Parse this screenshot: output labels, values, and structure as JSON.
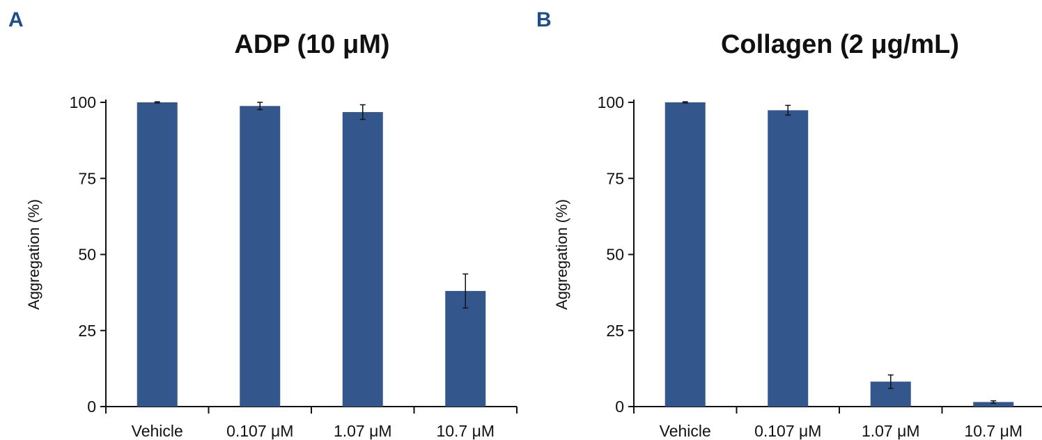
{
  "colors": {
    "bar": "#33578c",
    "axis": "#111111",
    "panel_letter": "#1f4e8c"
  },
  "chart_data": [
    {
      "panel": "A",
      "type": "bar",
      "title": "ADP (10 μM)",
      "xlabel": "",
      "ylabel": "Aggregation (%)",
      "ylim": [
        0,
        100
      ],
      "yticks": [
        "0",
        "25",
        "50",
        "75",
        "100"
      ],
      "categories": [
        "Vehicle",
        "0.107 μM",
        "1.07 μM",
        "10.7 μM"
      ],
      "values": [
        100,
        98.8,
        96.8,
        38.0
      ],
      "errors": [
        0.2,
        1.2,
        2.4,
        5.6
      ],
      "grid": false,
      "legend": "none"
    },
    {
      "panel": "B",
      "type": "bar",
      "title": "Collagen (2 μg/mL)",
      "xlabel": "",
      "ylabel": "Aggregation (%)",
      "ylim": [
        0,
        100
      ],
      "yticks": [
        "0",
        "25",
        "50",
        "75",
        "100"
      ],
      "categories": [
        "Vehicle",
        "0.107 μM",
        "1.07 μM",
        "10.7 μM"
      ],
      "values": [
        100,
        97.4,
        8.2,
        1.5
      ],
      "errors": [
        0.2,
        1.6,
        2.2,
        0.4
      ],
      "grid": false,
      "legend": "none"
    }
  ]
}
